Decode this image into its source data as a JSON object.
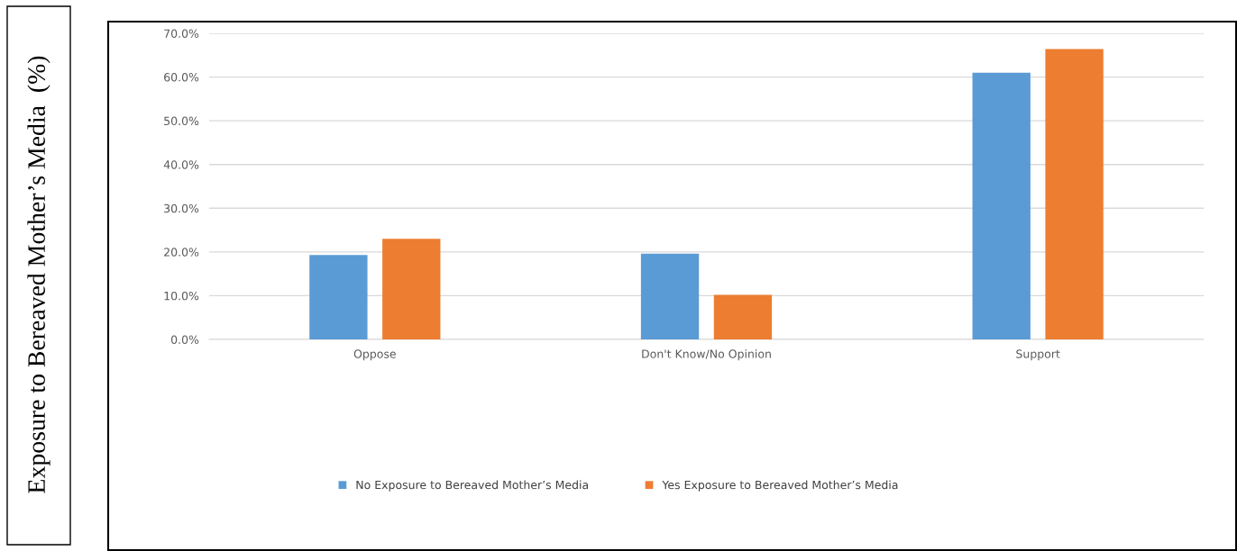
{
  "chart_data": {
    "type": "bar",
    "ylabel": "Exposure to Bereaved Mother’s Media  (%)",
    "categories": [
      "Oppose",
      "Don't Know/No Opinion",
      "Support"
    ],
    "series": [
      {
        "name": "No Exposure to Bereaved Mother’s Media",
        "color": "#5b9bd5",
        "values": [
          19.3,
          19.6,
          61.0
        ]
      },
      {
        "name": "Yes Exposure to Bereaved Mother’s Media",
        "color": "#ed7d31",
        "values": [
          23.0,
          10.2,
          66.4
        ]
      }
    ],
    "ylim": [
      0,
      70
    ],
    "yticks": [
      {
        "value": 0,
        "label": "0.0%"
      },
      {
        "value": 10,
        "label": "10.0%"
      },
      {
        "value": 20,
        "label": "20.0%"
      },
      {
        "value": 30,
        "label": "30.0%"
      },
      {
        "value": 40,
        "label": "40.0%"
      },
      {
        "value": 50,
        "label": "50.0%"
      },
      {
        "value": 60,
        "label": "60.0%"
      },
      {
        "value": 70,
        "label": "70.0%"
      }
    ],
    "grid": "y",
    "legend": "bottom"
  }
}
